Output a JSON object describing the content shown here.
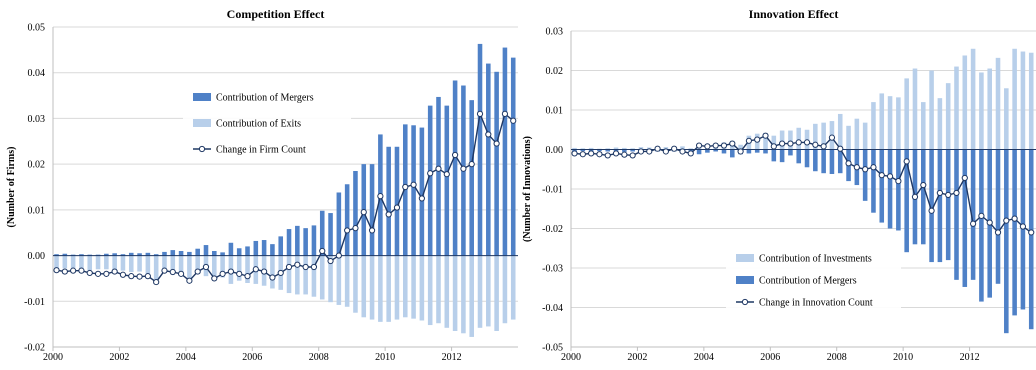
{
  "chart_data": [
    {
      "type": "bar",
      "title": "Competition Effect",
      "ylabel": "(Number of Firms)",
      "xlabel": "",
      "ylim": [
        -0.02,
        0.05
      ],
      "yticks": [
        {
          "value": -0.02,
          "label": "-0.02"
        },
        {
          "value": -0.01,
          "label": "-0.01"
        },
        {
          "value": 0.0,
          "label": "0.00"
        },
        {
          "value": 0.01,
          "label": "0.01"
        },
        {
          "value": 0.02,
          "label": "0.02"
        },
        {
          "value": 0.03,
          "label": "0.03"
        },
        {
          "value": 0.04,
          "label": "0.04"
        },
        {
          "value": 0.05,
          "label": "0.05"
        }
      ],
      "xlim": [
        2000,
        2014
      ],
      "xticks": [
        {
          "value": 2000,
          "label": "2000"
        },
        {
          "value": 2002,
          "label": "2002"
        },
        {
          "value": 2004,
          "label": "2004"
        },
        {
          "value": 2006,
          "label": "2006"
        },
        {
          "value": 2008,
          "label": "2008"
        },
        {
          "value": 2010,
          "label": "2010"
        },
        {
          "value": 2012,
          "label": "2012"
        }
      ],
      "grid": "horizontal",
      "legend_position": "center",
      "colors": {
        "mergers": "#4f81c7",
        "exits": "#b8cfea",
        "line": "#1f3864"
      },
      "legend": [
        {
          "label": "Contribution of Mergers",
          "kind": "bar-dark"
        },
        {
          "label": "Contribution of Exits",
          "kind": "bar-light"
        },
        {
          "label": "Change in Firm Count",
          "kind": "line"
        }
      ],
      "x": [
        2000.0,
        2000.25,
        2000.5,
        2000.75,
        2001.0,
        2001.25,
        2001.5,
        2001.75,
        2002.0,
        2002.25,
        2002.5,
        2002.75,
        2003.0,
        2003.25,
        2003.5,
        2003.75,
        2004.0,
        2004.25,
        2004.5,
        2004.75,
        2005.0,
        2005.25,
        2005.5,
        2005.75,
        2006.0,
        2006.25,
        2006.5,
        2006.75,
        2007.0,
        2007.25,
        2007.5,
        2007.75,
        2008.0,
        2008.25,
        2008.5,
        2008.75,
        2009.0,
        2009.25,
        2009.5,
        2009.75,
        2010.0,
        2010.25,
        2010.5,
        2010.75,
        2011.0,
        2011.25,
        2011.5,
        2011.75,
        2012.0,
        2012.25,
        2012.5,
        2012.75,
        2013.0,
        2013.25,
        2013.5,
        2013.75
      ],
      "series": [
        {
          "name": "Contribution of Mergers",
          "values": [
            0.0003,
            0.0004,
            0.0002,
            0.0003,
            0.0002,
            0.0002,
            0.0004,
            0.0005,
            0.0003,
            0.0006,
            0.0005,
            0.0006,
            0.0003,
            0.0008,
            0.0012,
            0.001,
            0.0008,
            0.0015,
            0.0023,
            0.001,
            0.0007,
            0.0028,
            0.0016,
            0.002,
            0.0032,
            0.0034,
            0.0025,
            0.0042,
            0.0058,
            0.0065,
            0.006,
            0.0066,
            0.0098,
            0.0093,
            0.0138,
            0.0156,
            0.0185,
            0.02,
            0.02,
            0.0265,
            0.0238,
            0.0238,
            0.0287,
            0.0285,
            0.028,
            0.0328,
            0.0347,
            0.0328,
            0.0383,
            0.0372,
            0.034,
            0.0463,
            0.042,
            0.0402,
            0.0455,
            0.0433
          ]
        },
        {
          "name": "Contribution of Exits",
          "values": [
            -0.0028,
            -0.0028,
            -0.0027,
            -0.003,
            -0.0032,
            -0.003,
            -0.003,
            -0.0035,
            -0.0033,
            -0.0036,
            -0.0035,
            -0.004,
            -0.0052,
            -0.003,
            -0.0032,
            -0.004,
            -0.0052,
            -0.004,
            -0.0045,
            -0.0055,
            -0.0048,
            -0.0062,
            -0.0055,
            -0.006,
            -0.0062,
            -0.0066,
            -0.0072,
            -0.0075,
            -0.0082,
            -0.0085,
            -0.0085,
            -0.009,
            -0.0096,
            -0.0102,
            -0.0108,
            -0.0112,
            -0.0125,
            -0.0135,
            -0.014,
            -0.0145,
            -0.0145,
            -0.014,
            -0.0135,
            -0.0138,
            -0.0142,
            -0.0152,
            -0.0148,
            -0.0158,
            -0.0165,
            -0.017,
            -0.0178,
            -0.0158,
            -0.0155,
            -0.0165,
            -0.0148,
            -0.014
          ]
        },
        {
          "name": "Change in Firm Count",
          "values": [
            -0.0032,
            -0.0035,
            -0.0033,
            -0.0033,
            -0.0038,
            -0.004,
            -0.004,
            -0.0035,
            -0.0042,
            -0.0045,
            -0.0046,
            -0.0045,
            -0.0058,
            -0.0033,
            -0.0036,
            -0.004,
            -0.0055,
            -0.0035,
            -0.0025,
            -0.005,
            -0.004,
            -0.0035,
            -0.004,
            -0.0045,
            -0.003,
            -0.0035,
            -0.0048,
            -0.0038,
            -0.0025,
            -0.002,
            -0.0025,
            -0.0025,
            0.001,
            -0.0012,
            0.0,
            0.0055,
            0.006,
            0.0095,
            0.0055,
            0.013,
            0.009,
            0.0105,
            0.015,
            0.0155,
            0.0125,
            0.018,
            0.019,
            0.0178,
            0.022,
            0.019,
            0.02,
            0.031,
            0.0265,
            0.0245,
            0.031,
            0.0295
          ]
        }
      ]
    },
    {
      "type": "bar",
      "title": "Innovation Effect",
      "ylabel": "(Number of Innovations)",
      "xlabel": "",
      "ylim": [
        -0.05,
        0.03
      ],
      "yticks": [
        {
          "value": -0.05,
          "label": "-0.05"
        },
        {
          "value": -0.04,
          "label": "-0.04"
        },
        {
          "value": -0.03,
          "label": "-0.03"
        },
        {
          "value": -0.02,
          "label": "-0.02"
        },
        {
          "value": -0.01,
          "label": "-0.01"
        },
        {
          "value": 0.0,
          "label": "0.00"
        },
        {
          "value": 0.01,
          "label": "0.01"
        },
        {
          "value": 0.02,
          "label": "0.02"
        },
        {
          "value": 0.03,
          "label": "0.03"
        }
      ],
      "xlim": [
        2000,
        2014
      ],
      "xticks": [
        {
          "value": 2000,
          "label": "2000"
        },
        {
          "value": 2002,
          "label": "2002"
        },
        {
          "value": 2004,
          "label": "2004"
        },
        {
          "value": 2006,
          "label": "2006"
        },
        {
          "value": 2008,
          "label": "2008"
        },
        {
          "value": 2010,
          "label": "2010"
        },
        {
          "value": 2012,
          "label": "2012"
        }
      ],
      "grid": "horizontal",
      "legend_position": "bottom-center",
      "colors": {
        "investments": "#b8cfea",
        "mergers": "#4f81c7",
        "line": "#1f3864"
      },
      "legend": [
        {
          "label": "Contribution of Investments",
          "kind": "bar-light"
        },
        {
          "label": "Contribution of Mergers",
          "kind": "bar-dark"
        },
        {
          "label": "Change in Innovation Count",
          "kind": "line"
        }
      ],
      "x": [
        2000.0,
        2000.25,
        2000.5,
        2000.75,
        2001.0,
        2001.25,
        2001.5,
        2001.75,
        2002.0,
        2002.25,
        2002.5,
        2002.75,
        2003.0,
        2003.25,
        2003.5,
        2003.75,
        2004.0,
        2004.25,
        2004.5,
        2004.75,
        2005.0,
        2005.25,
        2005.5,
        2005.75,
        2006.0,
        2006.25,
        2006.5,
        2006.75,
        2007.0,
        2007.25,
        2007.5,
        2007.75,
        2008.0,
        2008.25,
        2008.5,
        2008.75,
        2009.0,
        2009.25,
        2009.5,
        2009.75,
        2010.0,
        2010.25,
        2010.5,
        2010.75,
        2011.0,
        2011.25,
        2011.5,
        2011.75,
        2012.0,
        2012.25,
        2012.5,
        2012.75,
        2013.0,
        2013.25,
        2013.5,
        2013.75
      ],
      "series": [
        {
          "name": "Contribution of Investments",
          "values": [
            0.0004,
            0.0003,
            0.0004,
            0.0002,
            0.0003,
            0.0005,
            0.0004,
            0.0003,
            0.0006,
            0.0005,
            0.0004,
            0.0006,
            0.0005,
            0.0008,
            0.0003,
            0.0008,
            0.0012,
            0.0015,
            0.0018,
            0.0022,
            0.0012,
            0.0035,
            0.004,
            0.0042,
            0.0035,
            0.0048,
            0.0048,
            0.0055,
            0.005,
            0.0065,
            0.0068,
            0.0072,
            0.009,
            0.006,
            0.0078,
            0.0068,
            0.012,
            0.0142,
            0.0135,
            0.0132,
            0.018,
            0.0205,
            0.012,
            0.02,
            0.013,
            0.0168,
            0.021,
            0.0238,
            0.0255,
            0.0195,
            0.0205,
            0.0232,
            0.0155,
            0.0255,
            0.0248,
            0.0245
          ]
        },
        {
          "name": "Contribution of Mergers",
          "values": [
            -0.0005,
            -0.0004,
            -0.0006,
            -0.0004,
            -0.0005,
            -0.0004,
            -0.0006,
            -0.0005,
            -0.0004,
            -0.0006,
            -0.0005,
            -0.0006,
            -0.0005,
            -0.0004,
            -0.001,
            -0.0012,
            -0.0008,
            -0.0005,
            -0.001,
            -0.002,
            -0.0012,
            -0.001,
            -0.0008,
            -0.001,
            -0.003,
            -0.0032,
            -0.0015,
            -0.0035,
            -0.0045,
            -0.0055,
            -0.006,
            -0.0062,
            -0.006,
            -0.008,
            -0.009,
            -0.013,
            -0.016,
            -0.0185,
            -0.02,
            -0.0205,
            -0.026,
            -0.024,
            -0.024,
            -0.0285,
            -0.0285,
            -0.028,
            -0.033,
            -0.0348,
            -0.033,
            -0.0385,
            -0.0375,
            -0.034,
            -0.0465,
            -0.042,
            -0.0405,
            -0.0455
          ]
        },
        {
          "name": "Change in Innovation Count",
          "values": [
            -0.001,
            -0.0012,
            -0.001,
            -0.0012,
            -0.0015,
            -0.001,
            -0.0013,
            -0.0015,
            -0.0005,
            -0.0005,
            0.0002,
            -0.0005,
            0.0002,
            -0.0005,
            -0.001,
            0.001,
            0.0008,
            0.001,
            0.001,
            0.0015,
            -0.0005,
            0.0022,
            0.0025,
            0.0035,
            0.0008,
            0.0015,
            0.0015,
            0.0018,
            0.0018,
            0.0012,
            0.0008,
            0.003,
            0.0002,
            -0.0035,
            -0.0045,
            -0.005,
            -0.0045,
            -0.0065,
            -0.0068,
            -0.008,
            -0.003,
            -0.012,
            -0.009,
            -0.0155,
            -0.011,
            -0.0115,
            -0.011,
            -0.0072,
            -0.0188,
            -0.0168,
            -0.0185,
            -0.021,
            -0.018,
            -0.0175,
            -0.0195,
            -0.021
          ]
        }
      ]
    }
  ]
}
